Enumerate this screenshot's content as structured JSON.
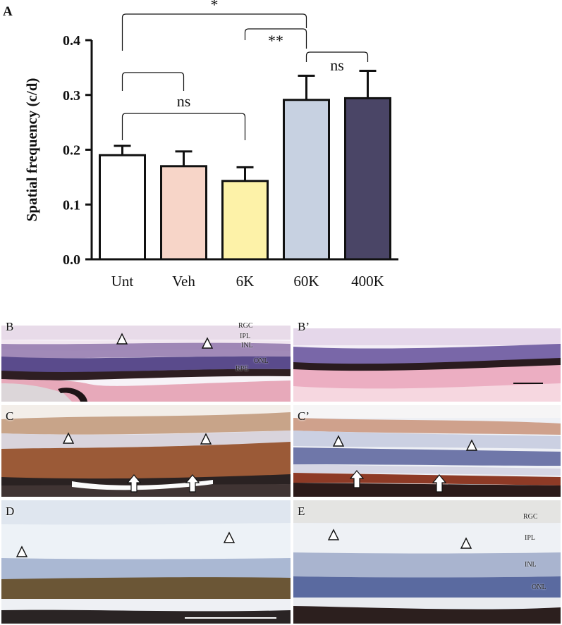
{
  "panel_a_label": "A",
  "chart_data": {
    "type": "bar",
    "categories": [
      "Unt",
      "Veh",
      "6K",
      "60K",
      "400K"
    ],
    "values": [
      0.19,
      0.17,
      0.143,
      0.291,
      0.294
    ],
    "errors": [
      0.017,
      0.027,
      0.025,
      0.044,
      0.05
    ],
    "colors": [
      "#ffffff",
      "#f7d5c8",
      "#fdf2a8",
      "#c7d1e1",
      "#4a4566"
    ],
    "xlabel": "",
    "ylabel": "Spatial frequency (c/d)",
    "ylim": [
      0,
      0.4
    ],
    "yticks": [
      "0.0",
      "0.1",
      "0.2",
      "0.3",
      "0.4"
    ],
    "grid": false,
    "significance": [
      {
        "from": "Unt",
        "to": "60K",
        "label": "*"
      },
      {
        "from": "6K",
        "to": "60K",
        "label": "**"
      },
      {
        "from": "60K",
        "to": "400K",
        "label": "ns"
      },
      {
        "from": "Unt",
        "to": "Veh",
        "label": ""
      },
      {
        "from": "Unt",
        "to": "6K",
        "label": "ns"
      }
    ]
  },
  "histology": {
    "b_label": "B",
    "b_prime_label": "B’",
    "c_label": "C",
    "c_prime_label": "C’",
    "d_label": "D",
    "e_label": "E",
    "b_layers": [
      "RGC",
      "IPL",
      "INL",
      "ONL",
      "RPE"
    ],
    "e_layers": [
      "RGC",
      "IPL",
      "INL",
      "ONL"
    ]
  }
}
